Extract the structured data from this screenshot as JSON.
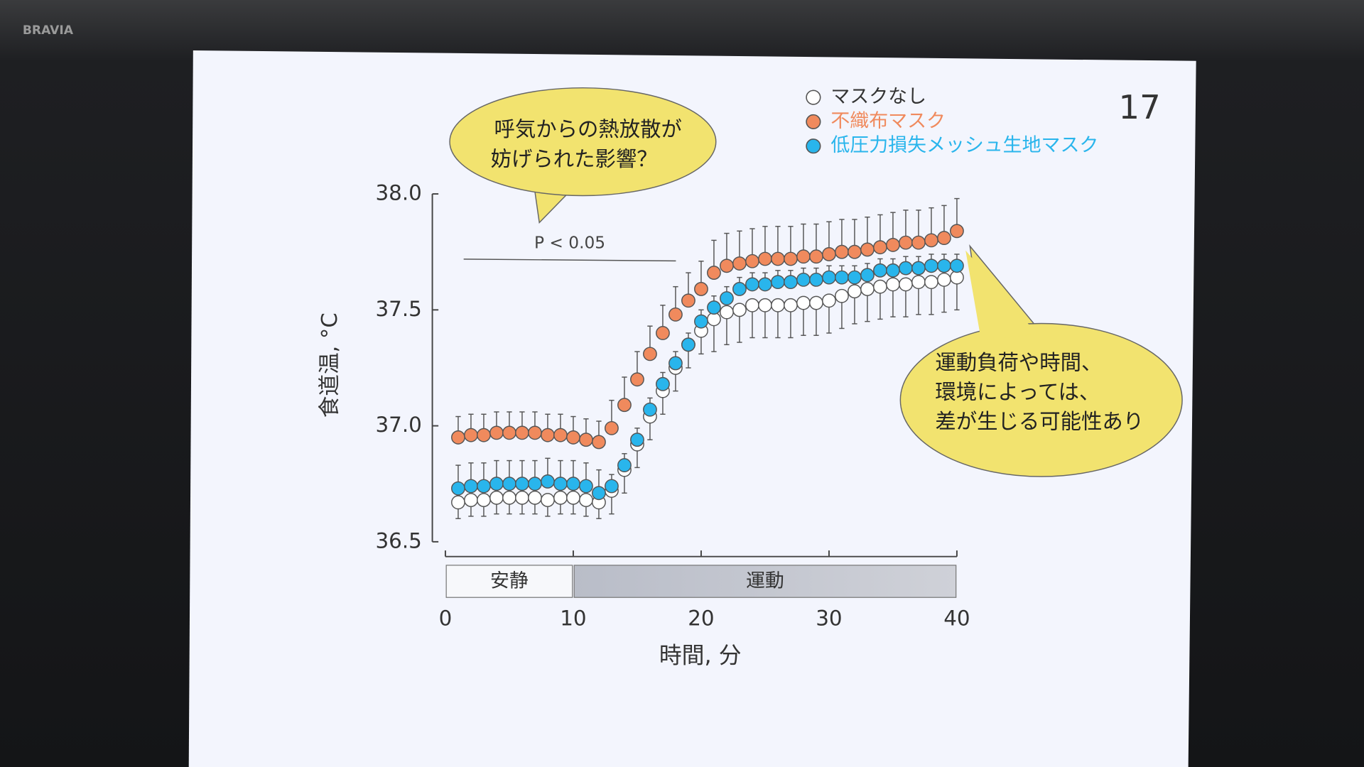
{
  "brand": "BRAVIA",
  "slide_number": "17",
  "chart_data": {
    "type": "scatter",
    "x_label": "時間, 分",
    "y_label": "食道温, °C",
    "xlim": [
      0,
      40
    ],
    "xticks": [
      0,
      10,
      20,
      30,
      40
    ],
    "ylim": [
      36.5,
      38.0
    ],
    "yticks": [
      36.5,
      {
        "value": 37,
        "label": "37.0"
      },
      37.5,
      {
        "value": 38,
        "label": "38.0"
      }
    ],
    "x": [
      1,
      2,
      3,
      4,
      5,
      6,
      7,
      8,
      9,
      10,
      11,
      12,
      13,
      14,
      15,
      16,
      17,
      18,
      19,
      20,
      21,
      22,
      23,
      24,
      25,
      26,
      27,
      28,
      29,
      30,
      31,
      32,
      33,
      34,
      35,
      36,
      37,
      38,
      39,
      40
    ],
    "series": [
      {
        "name": "マスクなし",
        "color": "#ffffff",
        "error_side": "down",
        "values": [
          36.67,
          36.68,
          36.68,
          36.69,
          36.69,
          36.69,
          36.69,
          36.68,
          36.69,
          36.69,
          36.68,
          36.67,
          36.72,
          36.81,
          36.92,
          37.04,
          37.15,
          37.25,
          37.35,
          37.41,
          37.46,
          37.49,
          37.5,
          37.52,
          37.52,
          37.52,
          37.52,
          37.53,
          37.53,
          37.54,
          37.56,
          37.58,
          37.59,
          37.6,
          37.61,
          37.61,
          37.62,
          37.62,
          37.63,
          37.64
        ],
        "errors": [
          0.07,
          0.07,
          0.07,
          0.07,
          0.07,
          0.07,
          0.07,
          0.07,
          0.07,
          0.07,
          0.07,
          0.07,
          0.1,
          0.1,
          0.1,
          0.1,
          0.1,
          0.1,
          0.1,
          0.1,
          0.14,
          0.14,
          0.14,
          0.14,
          0.14,
          0.14,
          0.14,
          0.14,
          0.14,
          0.14,
          0.14,
          0.14,
          0.14,
          0.14,
          0.14,
          0.14,
          0.14,
          0.14,
          0.14,
          0.14
        ]
      },
      {
        "name": "不織布マスク",
        "color": "#f08a5d",
        "error_side": "up",
        "values": [
          36.95,
          36.96,
          36.96,
          36.97,
          36.97,
          36.97,
          36.97,
          36.96,
          36.96,
          36.95,
          36.94,
          36.93,
          36.99,
          37.09,
          37.2,
          37.31,
          37.4,
          37.48,
          37.54,
          37.59,
          37.66,
          37.69,
          37.7,
          37.71,
          37.72,
          37.72,
          37.72,
          37.73,
          37.73,
          37.74,
          37.75,
          37.75,
          37.76,
          37.77,
          37.78,
          37.79,
          37.79,
          37.8,
          37.81,
          37.84
        ],
        "errors": [
          0.09,
          0.09,
          0.09,
          0.09,
          0.09,
          0.09,
          0.09,
          0.09,
          0.09,
          0.09,
          0.09,
          0.09,
          0.12,
          0.12,
          0.12,
          0.12,
          0.12,
          0.12,
          0.12,
          0.12,
          0.14,
          0.14,
          0.14,
          0.14,
          0.14,
          0.14,
          0.14,
          0.14,
          0.14,
          0.14,
          0.14,
          0.14,
          0.14,
          0.14,
          0.14,
          0.14,
          0.14,
          0.14,
          0.14,
          0.14
        ]
      },
      {
        "name": "低圧力損失メッシュ生地マスク",
        "color": "#29b5ec",
        "error_side": "up",
        "values": [
          36.73,
          36.74,
          36.74,
          36.75,
          36.75,
          36.75,
          36.75,
          36.76,
          36.75,
          36.75,
          36.74,
          36.71,
          36.74,
          36.83,
          36.94,
          37.07,
          37.18,
          37.27,
          37.35,
          37.45,
          37.51,
          37.55,
          37.59,
          37.61,
          37.61,
          37.62,
          37.62,
          37.63,
          37.63,
          37.64,
          37.64,
          37.64,
          37.65,
          37.67,
          37.67,
          37.68,
          37.68,
          37.69,
          37.69,
          37.69
        ],
        "errors": [
          0.1,
          0.1,
          0.1,
          0.1,
          0.1,
          0.1,
          0.1,
          0.1,
          0.1,
          0.1,
          0.1,
          0.1,
          0.05,
          0.05,
          0.05,
          0.05,
          0.05,
          0.05,
          0.05,
          0.05,
          0.05,
          0.05,
          0.05,
          0.05,
          0.05,
          0.05,
          0.05,
          0.05,
          0.05,
          0.05,
          0.05,
          0.05,
          0.05,
          0.05,
          0.05,
          0.05,
          0.05,
          0.05,
          0.05,
          0.05
        ]
      }
    ],
    "phases": [
      {
        "label": "安静",
        "start": 0,
        "end": 10
      },
      {
        "label": "運動",
        "start": 10,
        "end": 40
      }
    ],
    "significance": "P < 0.05",
    "annotations": [
      {
        "lines": [
          "呼気からの熱放散が",
          "妨げられた影響？"
        ]
      },
      {
        "lines": [
          "運動負荷や時間、",
          "環境によっては、",
          "差が生じる可能性あり"
        ]
      }
    ]
  }
}
